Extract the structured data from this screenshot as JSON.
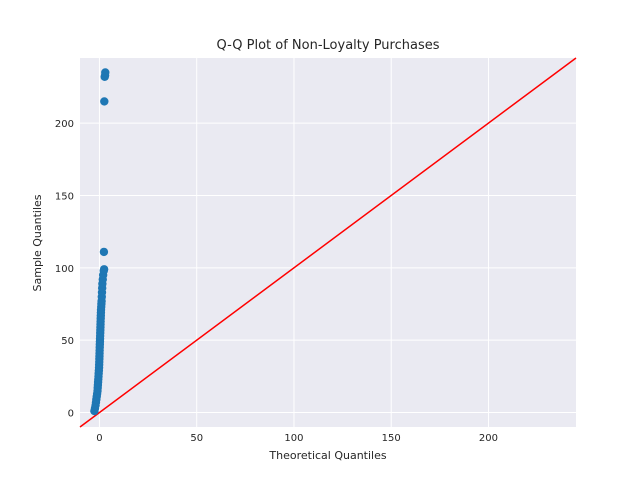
{
  "chart_data": {
    "type": "scatter",
    "title": "Q-Q Plot of Non-Loyalty Purchases",
    "xlabel": "Theoretical Quantiles",
    "ylabel": "Sample Quantiles",
    "xlim": [
      -10,
      245
    ],
    "ylim": [
      -10,
      245
    ],
    "xticks": [
      0,
      50,
      100,
      150,
      200
    ],
    "yticks": [
      0,
      50,
      100,
      150,
      200
    ],
    "grid": true,
    "reference_line": {
      "color": "#ff0000",
      "x": [
        -10,
        245
      ],
      "y": [
        -10,
        245
      ]
    },
    "series": [
      {
        "name": "Sample Quantiles",
        "color": "#1f77b4",
        "points": [
          [
            -2.6,
            1
          ],
          [
            -2.3,
            3
          ],
          [
            -2.0,
            5
          ],
          [
            -1.8,
            7
          ],
          [
            -1.6,
            9
          ],
          [
            -1.4,
            11
          ],
          [
            -1.2,
            13
          ],
          [
            -1.0,
            15
          ],
          [
            -0.9,
            17
          ],
          [
            -0.8,
            19
          ],
          [
            -0.7,
            21
          ],
          [
            -0.6,
            23
          ],
          [
            -0.5,
            25
          ],
          [
            -0.4,
            27
          ],
          [
            -0.3,
            29
          ],
          [
            -0.2,
            31
          ],
          [
            -0.15,
            33
          ],
          [
            -0.1,
            35
          ],
          [
            -0.05,
            37
          ],
          [
            0.0,
            39
          ],
          [
            0.05,
            41
          ],
          [
            0.1,
            43
          ],
          [
            0.15,
            45
          ],
          [
            0.2,
            47
          ],
          [
            0.25,
            49
          ],
          [
            0.3,
            51
          ],
          [
            0.35,
            53
          ],
          [
            0.4,
            55
          ],
          [
            0.45,
            57
          ],
          [
            0.5,
            59
          ],
          [
            0.55,
            61
          ],
          [
            0.6,
            63
          ],
          [
            0.65,
            65
          ],
          [
            0.7,
            67
          ],
          [
            0.75,
            69
          ],
          [
            0.8,
            71
          ],
          [
            0.9,
            73
          ],
          [
            1.0,
            75
          ],
          [
            1.1,
            77
          ],
          [
            1.2,
            80
          ],
          [
            1.3,
            83
          ],
          [
            1.4,
            86
          ],
          [
            1.5,
            89
          ],
          [
            1.7,
            92
          ],
          [
            1.9,
            95
          ],
          [
            2.2,
            98
          ],
          [
            2.4,
            99
          ],
          [
            2.3,
            111
          ],
          [
            2.5,
            215
          ],
          [
            2.7,
            232
          ],
          [
            2.9,
            233
          ],
          [
            3.0,
            235
          ]
        ]
      }
    ]
  }
}
